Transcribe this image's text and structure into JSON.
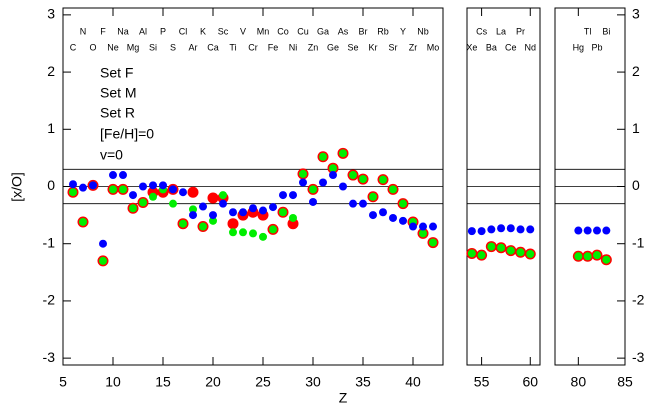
{
  "chart_data": {
    "type": "scatter",
    "y_label": "[x/O]",
    "x_label": "Z",
    "ylim": [
      -3.12,
      3.12
    ],
    "yticks": [
      -3,
      -2,
      -1,
      0,
      1,
      2,
      3
    ],
    "panels": [
      {
        "xlim": [
          5,
          43
        ],
        "xticks": [
          5,
          10,
          15,
          20,
          25,
          30,
          35,
          40
        ]
      },
      {
        "xlim": [
          53.5,
          61
        ],
        "xticks": [
          55,
          60
        ]
      },
      {
        "xlim": [
          77.5,
          85
        ],
        "xticks": [
          80,
          85
        ]
      }
    ],
    "reference_lines": [
      0.3,
      0,
      -0.3
    ],
    "x": [
      6,
      7,
      8,
      9,
      10,
      11,
      12,
      13,
      14,
      15,
      16,
      17,
      18,
      19,
      20,
      21,
      22,
      23,
      24,
      25,
      26,
      27,
      28,
      29,
      30,
      31,
      32,
      33,
      34,
      35,
      36,
      37,
      38,
      39,
      40,
      41,
      42,
      54,
      55,
      56,
      57,
      58,
      59,
      60,
      80,
      81,
      82,
      83
    ],
    "series": [
      {
        "name": "Set F",
        "color": "#ff0000",
        "values": [
          -0.1,
          -0.62,
          0.02,
          -1.3,
          -0.05,
          -0.05,
          -0.38,
          -0.28,
          -0.1,
          -0.1,
          -0.05,
          -0.65,
          -0.1,
          -0.7,
          -0.2,
          -0.2,
          -0.65,
          -0.5,
          -0.45,
          -0.5,
          -0.75,
          -0.45,
          -0.65,
          0.22,
          -0.05,
          0.52,
          0.32,
          0.58,
          0.2,
          0.13,
          -0.18,
          0.12,
          -0.05,
          -0.3,
          -0.62,
          -0.82,
          -0.98,
          -1.17,
          -1.2,
          -1.05,
          -1.07,
          -1.12,
          -1.15,
          -1.18,
          -1.22,
          -1.22,
          -1.2,
          -1.28
        ]
      },
      {
        "name": "Set M",
        "color": "#00ee00",
        "values": [
          -0.1,
          -0.62,
          0.02,
          -1.3,
          -0.05,
          -0.05,
          -0.38,
          -0.28,
          -0.18,
          -0.05,
          -0.3,
          -0.65,
          -0.4,
          -0.7,
          -0.6,
          -0.15,
          -0.8,
          -0.8,
          -0.82,
          -0.88,
          -0.75,
          -0.45,
          -0.55,
          0.22,
          -0.05,
          0.52,
          0.32,
          0.58,
          0.2,
          0.13,
          -0.18,
          0.12,
          -0.05,
          -0.3,
          -0.62,
          -0.82,
          -0.98,
          -1.17,
          -1.2,
          -1.05,
          -1.07,
          -1.12,
          -1.15,
          -1.18,
          -1.22,
          -1.22,
          -1.2,
          -1.28
        ]
      },
      {
        "name": "Set R",
        "color": "#0000ff",
        "values": [
          0.04,
          -0.02,
          0.02,
          -1.0,
          0.2,
          0.2,
          -0.15,
          0,
          0.02,
          0.02,
          -0.05,
          -0.1,
          -0.5,
          -0.35,
          -0.5,
          -0.3,
          -0.45,
          -0.45,
          -0.38,
          -0.42,
          -0.36,
          -0.15,
          -0.15,
          0.07,
          -0.27,
          0.07,
          0.2,
          0,
          -0.3,
          -0.3,
          -0.5,
          -0.45,
          -0.55,
          -0.6,
          -0.7,
          -0.7,
          -0.7,
          -0.78,
          -0.78,
          -0.75,
          -0.73,
          -0.73,
          -0.75,
          -0.75,
          -0.77,
          -0.77,
          -0.77,
          -0.77
        ]
      }
    ],
    "annotations": [
      "[Fe/H]=0",
      "v=0"
    ],
    "element_labels": [
      {
        "label": "C",
        "x": 6
      },
      {
        "label": "N",
        "x": 7
      },
      {
        "label": "O",
        "x": 8
      },
      {
        "label": "F",
        "x": 9
      },
      {
        "label": "Ne",
        "x": 10
      },
      {
        "label": "Na",
        "x": 11
      },
      {
        "label": "Mg",
        "x": 12
      },
      {
        "label": "Al",
        "x": 13
      },
      {
        "label": "Si",
        "x": 14
      },
      {
        "label": "P",
        "x": 15
      },
      {
        "label": "S",
        "x": 16
      },
      {
        "label": "Cl",
        "x": 17
      },
      {
        "label": "Ar",
        "x": 18
      },
      {
        "label": "K",
        "x": 19
      },
      {
        "label": "Ca",
        "x": 20
      },
      {
        "label": "Sc",
        "x": 21
      },
      {
        "label": "Ti",
        "x": 22
      },
      {
        "label": "V",
        "x": 23
      },
      {
        "label": "Cr",
        "x": 24
      },
      {
        "label": "Mn",
        "x": 25
      },
      {
        "label": "Fe",
        "x": 26
      },
      {
        "label": "Co",
        "x": 27
      },
      {
        "label": "Ni",
        "x": 28
      },
      {
        "label": "Cu",
        "x": 29
      },
      {
        "label": "Zn",
        "x": 30
      },
      {
        "label": "Ga",
        "x": 31
      },
      {
        "label": "Ge",
        "x": 32
      },
      {
        "label": "As",
        "x": 33
      },
      {
        "label": "Se",
        "x": 34
      },
      {
        "label": "Br",
        "x": 35
      },
      {
        "label": "Kr",
        "x": 36
      },
      {
        "label": "Rb",
        "x": 37
      },
      {
        "label": "Sr",
        "x": 38
      },
      {
        "label": "Y",
        "x": 39
      },
      {
        "label": "Zr",
        "x": 40
      },
      {
        "label": "Nb",
        "x": 41
      },
      {
        "label": "Mo",
        "x": 42
      },
      {
        "label": "Xe",
        "x": 54
      },
      {
        "label": "Cs",
        "x": 55
      },
      {
        "label": "Ba",
        "x": 56
      },
      {
        "label": "La",
        "x": 57
      },
      {
        "label": "Ce",
        "x": 58
      },
      {
        "label": "Pr",
        "x": 59
      },
      {
        "label": "Nd",
        "x": 60
      },
      {
        "label": "Hg",
        "x": 80
      },
      {
        "label": "Tl",
        "x": 81
      },
      {
        "label": "Pb",
        "x": 82
      },
      {
        "label": "Bi",
        "x": 83
      }
    ]
  }
}
